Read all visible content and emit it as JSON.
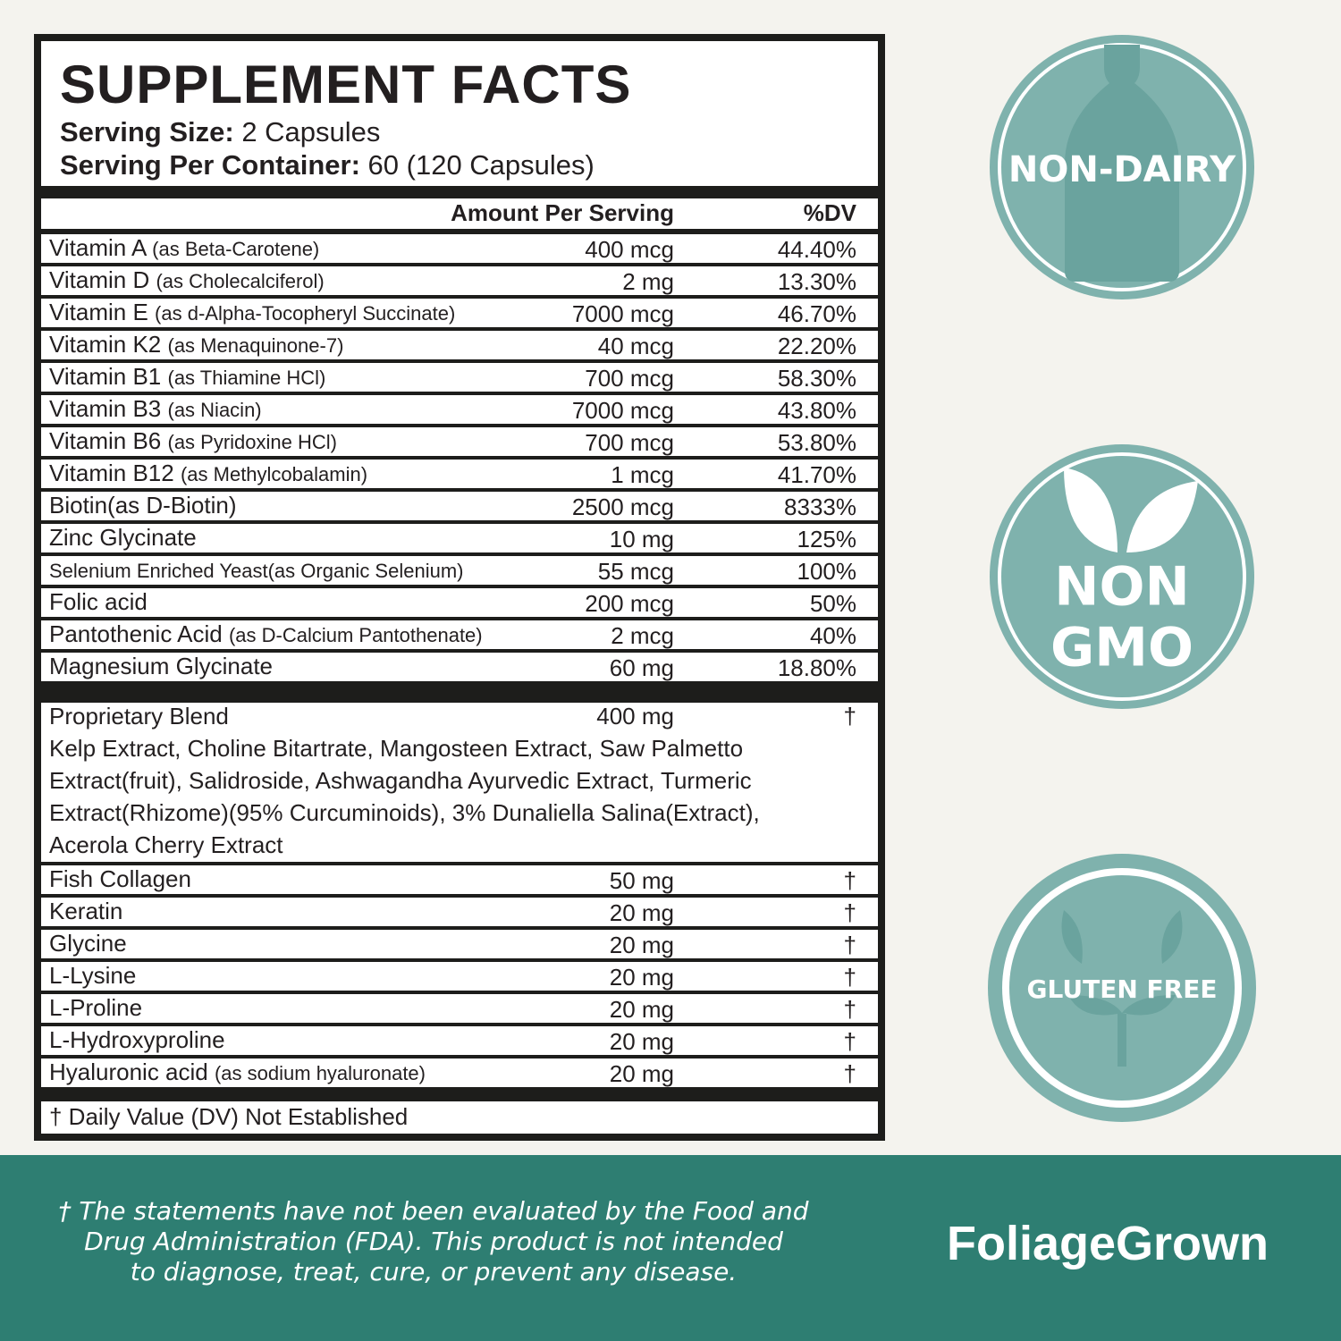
{
  "header": {
    "title": "SUPPLEMENT FACTS",
    "serving_size": {
      "label": "Serving Size:",
      "value": "2 Capsules"
    },
    "servings_per_container": {
      "label": "Serving Per Container:",
      "value": "60 (120 Capsules)"
    }
  },
  "table": {
    "columns": [
      "Amount Per Serving",
      "%DV"
    ],
    "rows": [
      {
        "name": "Vitamin A",
        "detail": "(as Beta-Carotene)",
        "amount": "400 mcg",
        "dv": "44.40%"
      },
      {
        "name": "Vitamin D",
        "detail": "(as Cholecalciferol)",
        "amount": "2 mg",
        "dv": "13.30%"
      },
      {
        "name": "Vitamin E",
        "detail": "(as d-Alpha-Tocopheryl Succinate)",
        "amount": "7000 mcg",
        "dv": "46.70%"
      },
      {
        "name": "Vitamin K2",
        "detail": "(as Menaquinone-7)",
        "amount": "40 mcg",
        "dv": "22.20%"
      },
      {
        "name": "Vitamin B1",
        "detail": "(as Thiamine HCl)",
        "amount": "700 mcg",
        "dv": "58.30%"
      },
      {
        "name": "Vitamin B3",
        "detail": "(as Niacin)",
        "amount": "7000 mcg",
        "dv": "43.80%"
      },
      {
        "name": "Vitamin B6",
        "detail": "(as Pyridoxine HCl)",
        "amount": "700 mcg",
        "dv": "53.80%"
      },
      {
        "name": "Vitamin B12",
        "detail": "(as Methylcobalamin)",
        "amount": "1 mcg",
        "dv": "41.70%"
      },
      {
        "name": "Biotin(as D-Biotin)",
        "amount": "2500 mcg",
        "dv": "8333%"
      },
      {
        "name": "Zinc Glycinate",
        "amount": "10 mg",
        "dv": "125%"
      },
      {
        "name": "Selenium Enriched Yeast(as Organic Selenium)",
        "amount": "55 mcg",
        "dv": "100%"
      },
      {
        "name": "Folic acid",
        "amount": "200 mcg",
        "dv": "50%"
      },
      {
        "name": "Pantothenic Acid",
        "detail": "(as D-Calcium Pantothenate)",
        "amount": "2 mcg",
        "dv": "40%"
      },
      {
        "name": "Magnesium Glycinate",
        "amount": "60 mg",
        "dv": "18.80%"
      }
    ],
    "blend": {
      "name": "Proprietary Blend",
      "amount": "400 mg",
      "dv": "†",
      "ingredients": [
        "Kelp Extract, Choline Bitartrate, Mangosteen Extract, Saw Palmetto",
        "Extract(fruit), Salidroside, Ashwagandha Ayurvedic Extract, Turmeric",
        "Extract(Rhizome)(95% Curcuminoids), 3% Dunaliella Salina(Extract),",
        "Acerola Cherry Extract"
      ]
    },
    "other_rows": [
      {
        "name": "Fish Collagen",
        "amount": "50 mg",
        "dv": "†"
      },
      {
        "name": "Keratin",
        "amount": "20 mg",
        "dv": "†"
      },
      {
        "name": "Glycine",
        "amount": "20 mg",
        "dv": "†"
      },
      {
        "name": "L-Lysine",
        "amount": "20 mg",
        "dv": "†"
      },
      {
        "name": "L-Proline",
        "amount": "20 mg",
        "dv": "†"
      },
      {
        "name": "L-Hydroxyproline",
        "amount": "20 mg",
        "dv": "†"
      },
      {
        "name": "Hyaluronic acid",
        "detail": "(as sodium hyaluronate)",
        "amount": "20 mg",
        "dv": "†"
      }
    ],
    "footnote": "† Daily Value (DV) Not Established"
  },
  "badges": {
    "non_dairy": "NON-DAIRY",
    "non_gmo": [
      "NON",
      "GMO"
    ],
    "gluten_free": "GLUTEN FREE"
  },
  "disclaimer": [
    "† The statements have not been evaluated by the Food and",
    "Drug Administration (FDA). This product is not intended",
    "to diagnose, treat, cure, or prevent any disease."
  ],
  "brand": "FoliageGrown"
}
